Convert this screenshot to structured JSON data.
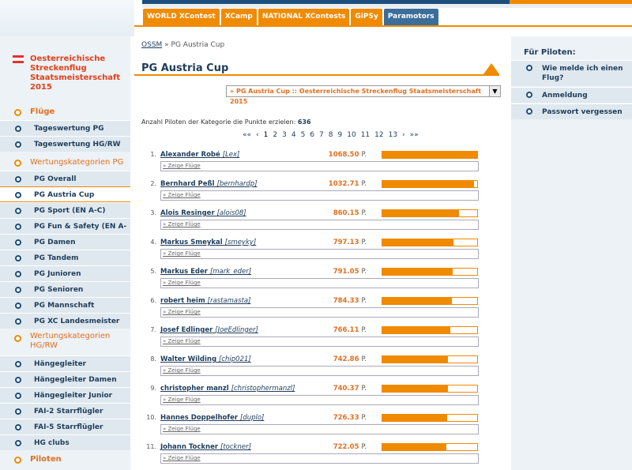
{
  "header": {
    "tabs": [
      {
        "label": "WORLD XContest",
        "style": "orange"
      },
      {
        "label": "XCamp",
        "style": "orange"
      },
      {
        "label": "NATIONAL XContests",
        "style": "orange"
      },
      {
        "label": "GiPSy",
        "style": "orange"
      },
      {
        "label": "Paramotors",
        "style": "blue"
      }
    ]
  },
  "sidebar": {
    "title": "Oesterreichische Streckenflug Staatsmeisterschaft 2015",
    "items": [
      {
        "label": "Flüge",
        "kind": "bold-section"
      },
      {
        "label": "Tageswertung PG",
        "kind": "sub"
      },
      {
        "label": "Tageswertung HG/RW",
        "kind": "sub"
      },
      {
        "label": "Wertungskategorien PG",
        "kind": "section"
      },
      {
        "label": "PG Overall",
        "kind": "sub"
      },
      {
        "label": "PG Austria Cup",
        "kind": "active"
      },
      {
        "label": "PG Sport (EN A-C)",
        "kind": "sub"
      },
      {
        "label": "PG Fun & Safety (EN A-B)",
        "kind": "sub"
      },
      {
        "label": "PG Damen",
        "kind": "sub"
      },
      {
        "label": "PG Tandem",
        "kind": "sub"
      },
      {
        "label": "PG Junioren",
        "kind": "sub"
      },
      {
        "label": "PG Senioren",
        "kind": "sub"
      },
      {
        "label": "PG Mannschaft",
        "kind": "sub"
      },
      {
        "label": "PG XC Landesmeister",
        "kind": "sub"
      },
      {
        "label": "Wertungskategorien HG/RW",
        "kind": "section"
      },
      {
        "label": "Hängegleiter",
        "kind": "sub"
      },
      {
        "label": "Hängegleiter Damen",
        "kind": "sub"
      },
      {
        "label": "Hängegleiter Junior",
        "kind": "sub"
      },
      {
        "label": "FAI-2 Starrflügler",
        "kind": "sub"
      },
      {
        "label": "FAI-5 Starrflügler",
        "kind": "sub"
      },
      {
        "label": "HG clubs",
        "kind": "sub"
      },
      {
        "label": "Piloten",
        "kind": "bold-section"
      }
    ]
  },
  "main": {
    "breadcrumb": {
      "root": "OSSM",
      "separator": "»",
      "current": "PG Austria Cup"
    },
    "title": "PG Austria Cup",
    "select_value": "» PG Austria Cup :: Oesterreichische Streckenflug Staatsmeisterschaft 2015",
    "count_label": "Anzahl Piloten der Kategorie die Punkte erzielen:",
    "count_value": "636",
    "pager": [
      "««",
      "‹",
      "1",
      "2",
      "3",
      "4",
      "5",
      "6",
      "7",
      "8",
      "9",
      "10",
      "11",
      "12",
      "13",
      "›",
      "»»"
    ],
    "pager_current": "1",
    "flights_label": "» Zeige Flüge",
    "points_unit": "P.",
    "max_points": 1068.5,
    "rows": [
      {
        "rank": "1.",
        "name": "Alexander Robé",
        "nick": "[Lex]",
        "points": "1068.50"
      },
      {
        "rank": "2.",
        "name": "Bernhard Peßl",
        "nick": "[bernhardp]",
        "points": "1032.71"
      },
      {
        "rank": "3.",
        "name": "Alois Resinger",
        "nick": "[alois08]",
        "points": "860.15"
      },
      {
        "rank": "4.",
        "name": "Markus Smeykal",
        "nick": "[smeyky]",
        "points": "797.13"
      },
      {
        "rank": "5.",
        "name": "Markus Eder",
        "nick": "[mark_eder]",
        "points": "791.05"
      },
      {
        "rank": "6.",
        "name": "robert heim",
        "nick": "[rastamasta]",
        "points": "784.33"
      },
      {
        "rank": "7.",
        "name": "Josef Edlinger",
        "nick": "[JoeEdlinger]",
        "points": "766.11"
      },
      {
        "rank": "8.",
        "name": "Walter Wilding",
        "nick": "[chip021]",
        "points": "742.86"
      },
      {
        "rank": "9.",
        "name": "christopher manzl",
        "nick": "[christophermanzl]",
        "points": "740.37"
      },
      {
        "rank": "10.",
        "name": "Hannes Doppelhofer",
        "nick": "[duplo]",
        "points": "726.33"
      },
      {
        "rank": "11.",
        "name": "Johann Tockner",
        "nick": "[tockner]",
        "points": "722.05"
      }
    ]
  },
  "rightbar": {
    "title": "Für Piloten:",
    "items": [
      {
        "label": "Wie melde ich einen Flug?"
      },
      {
        "label": "Anmeldung"
      },
      {
        "label": "Passwort vergessen"
      }
    ]
  }
}
